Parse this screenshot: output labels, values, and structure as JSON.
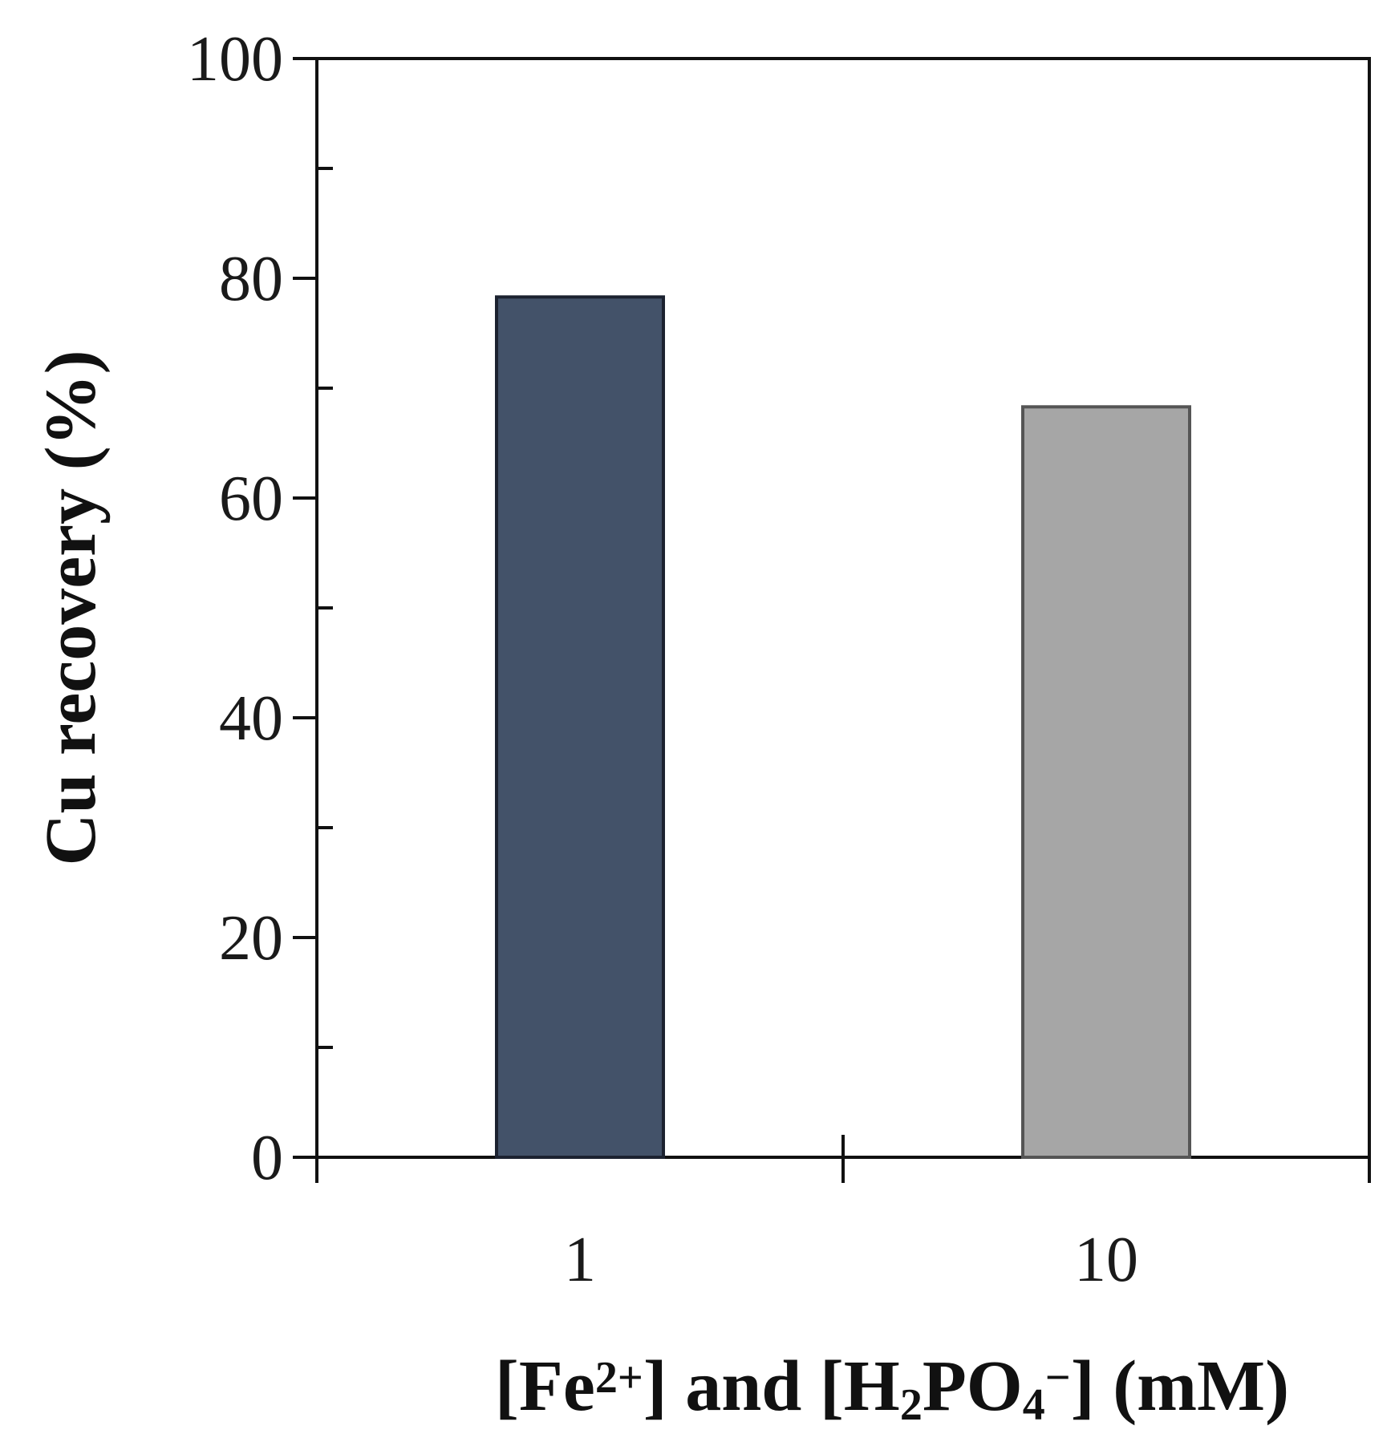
{
  "chart_data": {
    "type": "bar",
    "categories": [
      "1",
      "10"
    ],
    "values": [
      78.3,
      68.3
    ],
    "bar_colors": [
      "#435269",
      "#a6a6a6"
    ],
    "bar_edge_colors": [
      "#1c2230",
      "#555555"
    ],
    "title": "",
    "ylabel": "Cu recovery (%)",
    "xlabel": {
      "parts": [
        {
          "text": "[Fe",
          "style": "normal"
        },
        {
          "text": "2+",
          "style": "sup"
        },
        {
          "text": "] and [H",
          "style": "normal"
        },
        {
          "text": "2",
          "style": "sub"
        },
        {
          "text": "PO",
          "style": "normal"
        },
        {
          "text": "4",
          "style": "sub"
        },
        {
          "text": "−",
          "style": "sup"
        },
        {
          "text": "] (mM)",
          "style": "normal"
        }
      ]
    },
    "ylim": [
      0,
      100
    ],
    "yticks": [
      0,
      20,
      40,
      60,
      80,
      100
    ],
    "yticks_minor": [
      10,
      30,
      50,
      70,
      90
    ],
    "grid": false,
    "legend": "none"
  }
}
